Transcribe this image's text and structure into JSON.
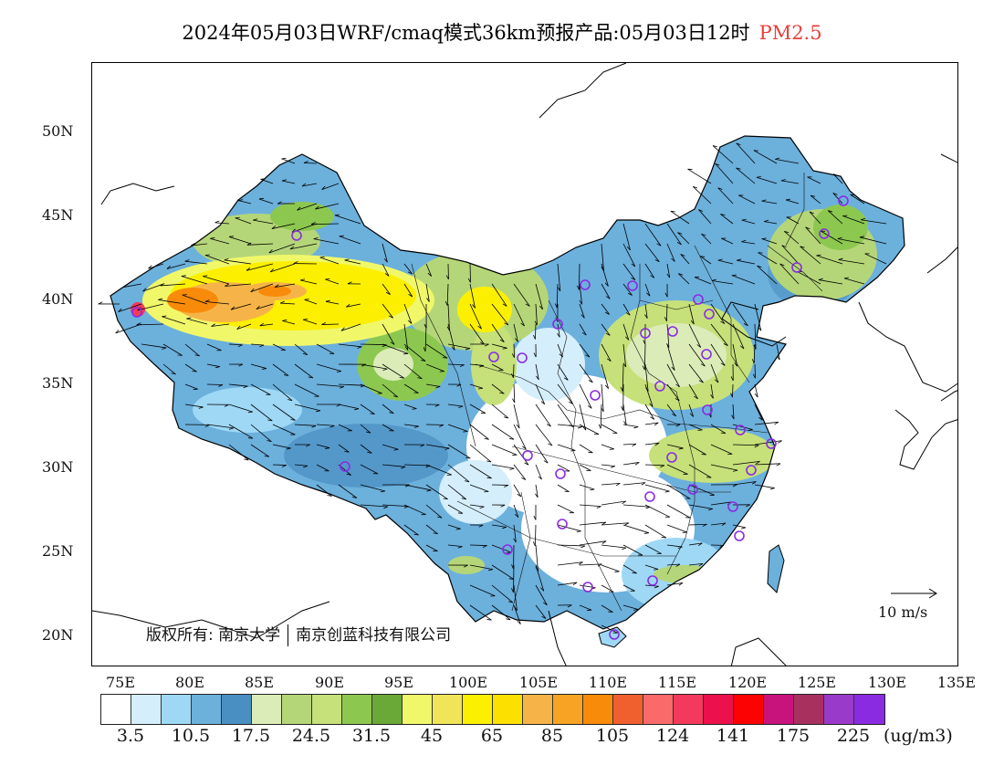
{
  "title": {
    "main": "2024年05月03日WRF/cmaq模式36km预报产品:05月03日12时",
    "product": "PM2.5",
    "product_color": "#e8403a"
  },
  "axes": {
    "lat_labels": [
      "50N",
      "45N",
      "40N",
      "35N",
      "30N",
      "25N",
      "20N"
    ],
    "lon_labels": [
      "75E",
      "80E",
      "85E",
      "90E",
      "95E",
      "100E",
      "105E",
      "110E",
      "115E",
      "120E",
      "125E",
      "130E",
      "135E"
    ]
  },
  "copyright": {
    "prefix": "版权所有:",
    "org1": "南京大学",
    "org2": "南京创蓝科技有限公司"
  },
  "wind_reference": {
    "label": "10 m/s"
  },
  "colorbar": {
    "colors": [
      "#ffffff",
      "#d4eefc",
      "#9ed8f5",
      "#6cb0dc",
      "#4a8fc2",
      "#dcecb8",
      "#b5d678",
      "#c6e07a",
      "#8cc850",
      "#6aa838",
      "#f0f86a",
      "#f0e458",
      "#fcf000",
      "#fce000",
      "#f6b448",
      "#f7a424",
      "#f98b0a",
      "#f05f2e",
      "#fb6a6a",
      "#f33a5c",
      "#ec104c",
      "#fd0202",
      "#c8137c",
      "#a8305e",
      "#9a3acb",
      "#8a2be2"
    ],
    "labels": [
      "3.5",
      "10.5",
      "17.5",
      "24.5",
      "31.5",
      "45",
      "65",
      "85",
      "105",
      "124",
      "141",
      "175",
      "225"
    ],
    "unit": "(ug/m3)"
  }
}
